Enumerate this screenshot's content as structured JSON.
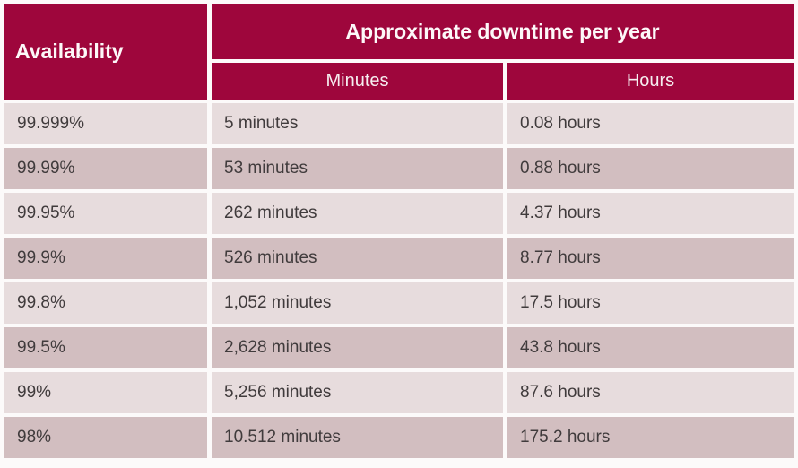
{
  "table": {
    "header": {
      "availability_label": "Availability",
      "downtime_label": "Approximate downtime per year",
      "minutes_label": "Minutes",
      "hours_label": "Hours"
    },
    "rows": [
      {
        "availability": "99.999%",
        "minutes": "5 minutes",
        "hours": "0.08 hours"
      },
      {
        "availability": "99.99%",
        "minutes": "53 minutes",
        "hours": "0.88 hours"
      },
      {
        "availability": "99.95%",
        "minutes": "262 minutes",
        "hours": "4.37 hours"
      },
      {
        "availability": "99.9%",
        "minutes": "526 minutes",
        "hours": "8.77 hours"
      },
      {
        "availability": "99.8%",
        "minutes": "1,052 minutes",
        "hours": "17.5 hours"
      },
      {
        "availability": "99.5%",
        "minutes": "2,628 minutes",
        "hours": "43.8 hours"
      },
      {
        "availability": "99%",
        "minutes": "5,256 minutes",
        "hours": "87.6 hours"
      },
      {
        "availability": "98%",
        "minutes": "10.512 minutes",
        "hours": "175.2 hours"
      }
    ],
    "colors": {
      "header_bg": "#9e063c",
      "header_text": "#fdf8f9",
      "row_light_bg": "#e7dcdd",
      "row_dark_bg": "#d2bec0",
      "body_text": "#403b3c",
      "gap": "#fcfafa"
    }
  }
}
